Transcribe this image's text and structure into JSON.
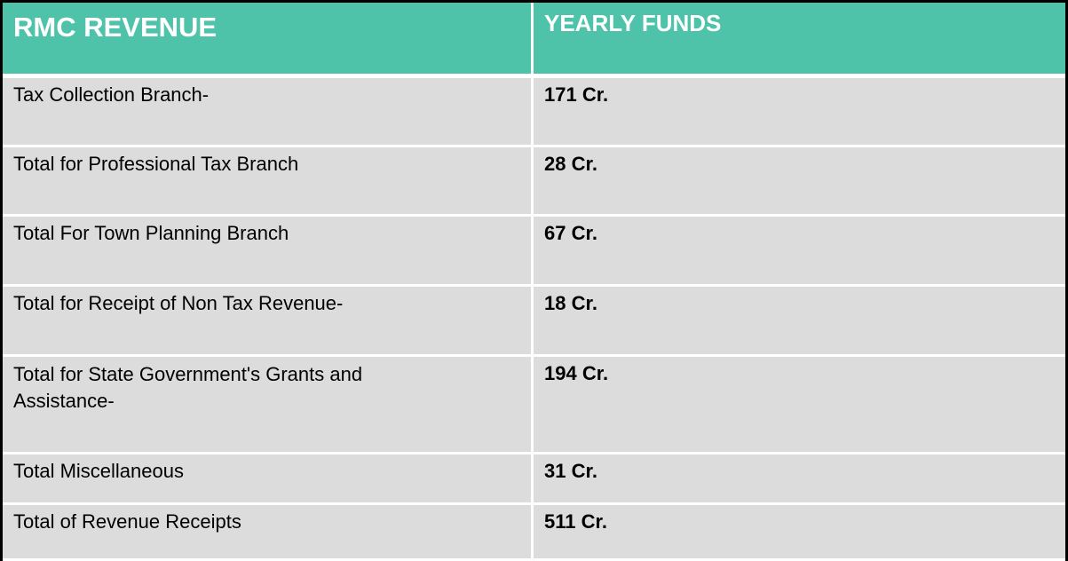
{
  "header": {
    "col1": "RMC REVENUE",
    "col2": "YEARLY FUNDS"
  },
  "colors": {
    "header_bg": "#4fc3a9",
    "row_bg": "#dcdcdc"
  },
  "rows": [
    {
      "label": "Tax Collection Branch-",
      "value": "171 Cr."
    },
    {
      "label": "Total for Professional Tax Branch",
      "value": "28 Cr."
    },
    {
      "label": "Total For Town Planning Branch",
      "value": "67 Cr."
    },
    {
      "label": "Total for Receipt of Non Tax Revenue-",
      "value": "18 Cr."
    },
    {
      "label": "Total for State Government's Grants and Assistance-",
      "value": "194 Cr."
    },
    {
      "label": "Total Miscellaneous",
      "value": "31 Cr."
    },
    {
      "label": "Total of Revenue Receipts",
      "value": "511 Cr."
    }
  ]
}
